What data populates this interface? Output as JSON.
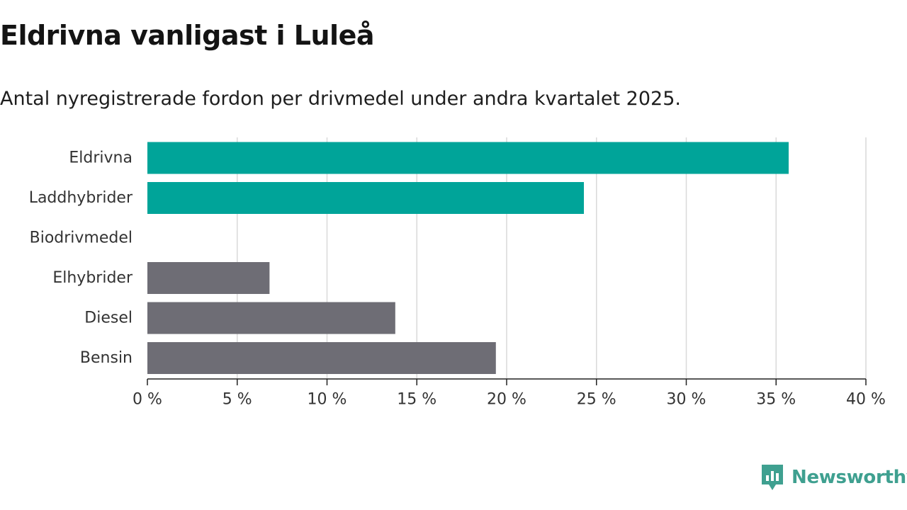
{
  "title": "Eldrivna vanligast i Luleå",
  "subtitle": "Antal nyregistrerade fordon per drivmedel under andra kvartalet 2025.",
  "brand": {
    "name": "Newsworthy",
    "icon": "newsworthy-logo-icon",
    "color": "#3fa090"
  },
  "colors": {
    "highlight": "#00a499",
    "neutral": "#6e6d75",
    "grid": "#d9d9d9",
    "axis": "#222222"
  },
  "chart_data": {
    "type": "bar",
    "orientation": "horizontal",
    "categories": [
      "Eldrivna",
      "Laddhybrider",
      "Biodrivmedel",
      "Elhybrider",
      "Diesel",
      "Bensin"
    ],
    "values": [
      35.7,
      24.3,
      0,
      6.8,
      13.8,
      19.4
    ],
    "bar_colors": [
      "#00a499",
      "#00a499",
      "#6e6d75",
      "#6e6d75",
      "#6e6d75",
      "#6e6d75"
    ],
    "xlim": [
      0,
      40
    ],
    "xticks": [
      0,
      5,
      10,
      15,
      20,
      25,
      30,
      35,
      40
    ],
    "xtick_labels": [
      "0 %",
      "5 %",
      "10 %",
      "15 %",
      "20 %",
      "25 %",
      "30 %",
      "35 %",
      "40 %"
    ],
    "grid": "vertical",
    "legend": "none"
  }
}
